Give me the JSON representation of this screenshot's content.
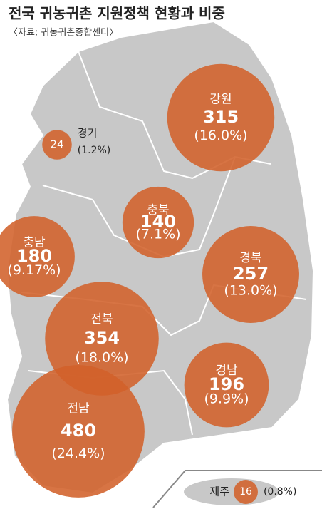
{
  "chart_data": {
    "type": "bubble-map",
    "title": "전국 귀농귀촌 지원정책 현황과 비중",
    "subtitle": "〈자료: 귀농귀촌종합센터〉",
    "categories": [
      "강원",
      "경기",
      "충북",
      "충남",
      "경북",
      "전북",
      "경남",
      "전남",
      "제주"
    ],
    "values": [
      315,
      24,
      140,
      180,
      257,
      354,
      196,
      480,
      16
    ],
    "shares": [
      16.0,
      1.2,
      7.1,
      9.17,
      13.0,
      18.0,
      9.9,
      24.4,
      0.8
    ],
    "share_labels": [
      "(16.0%)",
      "(1.2%)",
      "(7.1%)",
      "(9.17%)",
      "(13.0%)",
      "(18.0%)",
      "(9.9%)",
      "(24.4%)",
      "(0.8%)"
    ],
    "color": "#d2612a"
  }
}
